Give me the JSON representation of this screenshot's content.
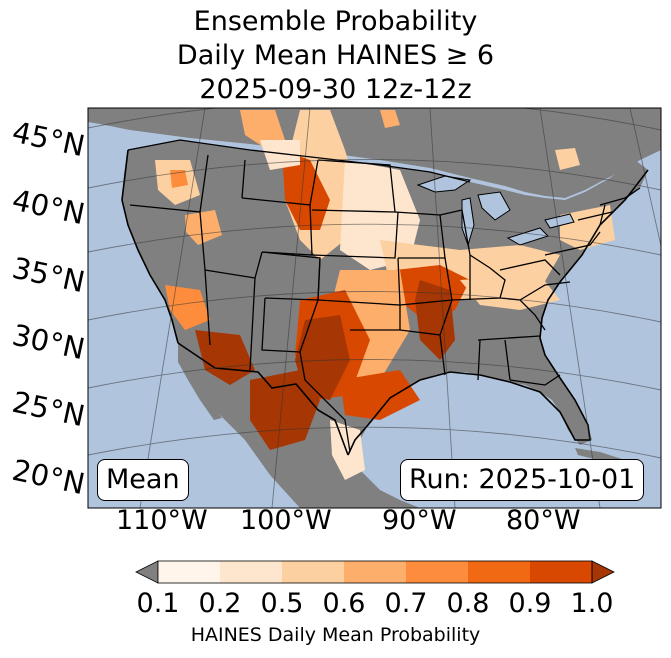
{
  "title": {
    "line1": "Ensemble Probability",
    "line2": "Daily Mean HAINES ≥ 6",
    "line3": "2025-09-30 12z-12z"
  },
  "map": {
    "lat_labels": [
      "45°N",
      "40°N",
      "35°N",
      "30°N",
      "25°N",
      "20°N"
    ],
    "lon_labels": [
      "110°W",
      "100°W",
      "90°W",
      "80°W"
    ],
    "stat_label": "Mean",
    "run_label": "Run: 2025-10-01",
    "colors": {
      "ocean": "#b0c4de",
      "land": "#808080",
      "border": "#000000",
      "grid": "#333333"
    }
  },
  "colorbar": {
    "ticks": [
      "0.1",
      "0.2",
      "0.5",
      "0.6",
      "0.7",
      "0.8",
      "0.9",
      "1.0"
    ],
    "label": "HAINES Daily Mean Probability",
    "under_color": "#808080",
    "colors": [
      "#fff5eb",
      "#fee6ce",
      "#fdd0a2",
      "#fdae6b",
      "#fd8d3c",
      "#f16913",
      "#d94801",
      "#a63603"
    ]
  }
}
